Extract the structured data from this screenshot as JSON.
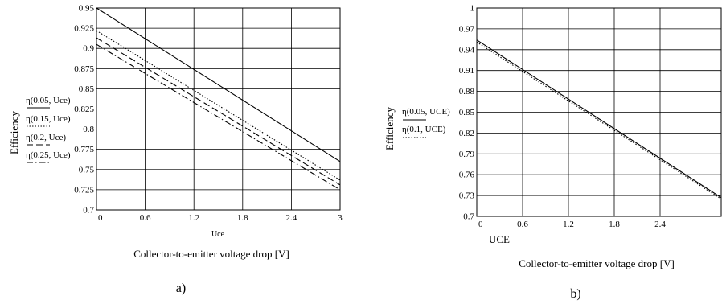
{
  "chart_data": [
    {
      "type": "line",
      "panel_label": "a)",
      "xlabel": "Collector-to-emitter voltage drop [V]",
      "x_var_label": "Uce",
      "ylabel": "Efficiency",
      "xlim": [
        0,
        3
      ],
      "ylim": [
        0.7,
        0.95
      ],
      "xticks": [
        0,
        0.6,
        1.2,
        1.8,
        2.4,
        3
      ],
      "xtick_labels": [
        "0",
        "0.6",
        "1.2",
        "1.8",
        "2.4",
        "3"
      ],
      "yticks": [
        0.7,
        0.725,
        0.75,
        0.775,
        0.8,
        0.825,
        0.85,
        0.875,
        0.9,
        0.925,
        0.95
      ],
      "ytick_labels": [
        "0.7",
        "0.725",
        "0.75",
        "0.775",
        "0.8",
        "0.825",
        "0.85",
        "0.875",
        "0.9",
        "0.925",
        "0.95"
      ],
      "grid": true,
      "series": [
        {
          "name": "η(0.05, Uce)",
          "dash": "solid",
          "x": [
            0,
            3
          ],
          "y": [
            0.95,
            0.76
          ]
        },
        {
          "name": "η(0.15, Uce)",
          "dash": "dotted",
          "x": [
            0,
            3
          ],
          "y": [
            0.922,
            0.737
          ]
        },
        {
          "name": "η(0.2, Uce)",
          "dash": "dashed",
          "x": [
            0,
            3
          ],
          "y": [
            0.913,
            0.731
          ]
        },
        {
          "name": "η(0.25, Uce)",
          "dash": "dashdot",
          "x": [
            0,
            3
          ],
          "y": [
            0.905,
            0.725
          ]
        }
      ]
    },
    {
      "type": "line",
      "panel_label": "b)",
      "xlabel": "Collector-to-emitter voltage drop [V]",
      "x_var_label": "UCE",
      "ylabel": "Efficiency",
      "xlim": [
        0,
        3.2
      ],
      "ylim": [
        0.7,
        1.0
      ],
      "xticks": [
        0,
        0.6,
        1.2,
        1.8,
        2.4
      ],
      "xtick_labels": [
        "0",
        "0.6",
        "1.2",
        "1.8",
        "2.4"
      ],
      "yticks": [
        0.7,
        0.73,
        0.76,
        0.79,
        0.82,
        0.85,
        0.88,
        0.91,
        0.94,
        0.97,
        1.0
      ],
      "ytick_labels": [
        "0.7",
        "0.73",
        "0.76",
        "0.79",
        "0.82",
        "0.85",
        "0.88",
        "0.91",
        "0.94",
        "0.97",
        "1"
      ],
      "grid": true,
      "series": [
        {
          "name": "η(0.05, UCE)",
          "dash": "solid",
          "x": [
            0,
            3.2
          ],
          "y": [
            0.954,
            0.727
          ]
        },
        {
          "name": "η(0.1, UCE)",
          "dash": "dotted",
          "x": [
            0,
            3.2
          ],
          "y": [
            0.951,
            0.725
          ]
        }
      ]
    }
  ]
}
